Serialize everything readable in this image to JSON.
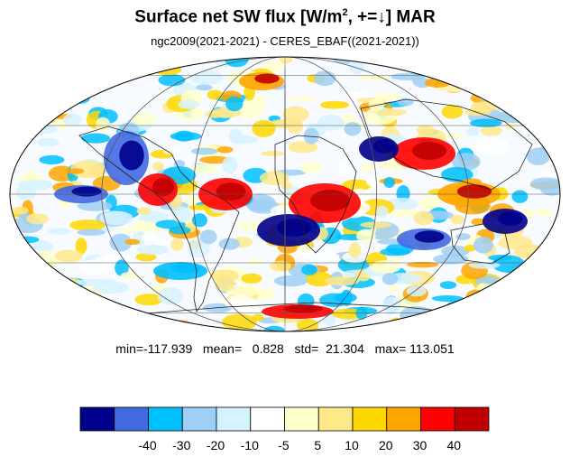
{
  "title": {
    "main": "Surface net SW flux [W/m",
    "superscript": "2",
    "rest": ", +=↓]  MAR"
  },
  "subtitle": "ngc2009(2021-2021) - CERES_EBAF((2021-2021))",
  "stats": {
    "text": "min=-117.939   mean=   0.828   std=  21.304   max= 113.051",
    "min": -117.939,
    "mean": 0.828,
    "std": 21.304,
    "max": 113.051
  },
  "projection": "mollweide",
  "colorbar": {
    "colors": [
      "#00008b",
      "#4169e1",
      "#00bfff",
      "#a0cff5",
      "#d7f2ff",
      "#ffffff",
      "#ffffcc",
      "#ffe88a",
      "#ffd700",
      "#ffa500",
      "#ff0000",
      "#c00000"
    ],
    "labels": [
      "-40",
      "-30",
      "-20",
      "-10",
      "-5",
      "5",
      "10",
      "20",
      "30",
      "40"
    ]
  },
  "chart_data": {
    "type": "heatmap",
    "title": "Surface net SW flux [W/m2, +=↓]  MAR",
    "levels": [
      -40,
      -30,
      -20,
      -10,
      -5,
      5,
      10,
      20,
      30,
      40
    ]
  }
}
